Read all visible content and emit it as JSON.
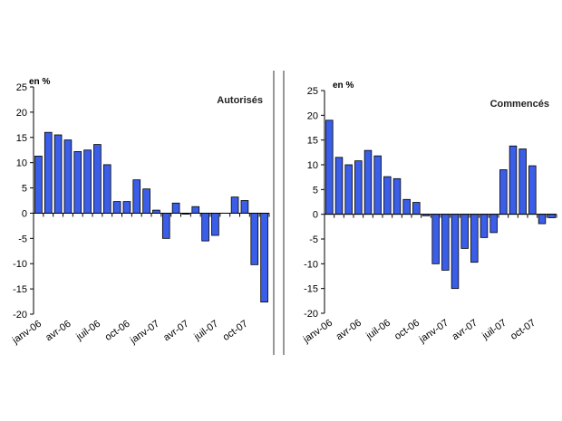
{
  "chart_data": [
    {
      "type": "bar",
      "title": "Autorisés",
      "ylabel": "en %",
      "ylim": [
        -20,
        25
      ],
      "yticks": [
        "25",
        "20",
        "15",
        "10",
        "5",
        "0",
        "-5",
        "-10",
        "-15",
        "-20"
      ],
      "xtick_labels": [
        "janv-06",
        "avr-06",
        "juil-06",
        "oct-06",
        "janv-07",
        "avr-07",
        "juil-07",
        "oct-07"
      ],
      "categories": [
        "janv-06",
        "févr-06",
        "mars-06",
        "avr-06",
        "mai-06",
        "juin-06",
        "juil-06",
        "août-06",
        "sept-06",
        "oct-06",
        "nov-06",
        "déc-06",
        "janv-07",
        "févr-07",
        "mars-07",
        "avr-07",
        "mai-07",
        "juin-07",
        "juil-07",
        "août-07",
        "sept-07",
        "oct-07",
        "nov-07",
        "déc-07"
      ],
      "values": [
        11.3,
        16.0,
        15.5,
        14.5,
        12.2,
        12.5,
        13.6,
        9.6,
        2.3,
        2.3,
        6.6,
        4.8,
        0.6,
        -5.0,
        2.0,
        -0.2,
        1.3,
        -5.5,
        -4.4,
        0,
        3.2,
        2.5,
        -10.2,
        -17.6
      ],
      "color": "#3b5ee8"
    },
    {
      "type": "bar",
      "title": "Commencés",
      "ylabel": "en %",
      "ylim": [
        -20,
        25
      ],
      "yticks": [
        "25",
        "20",
        "15",
        "10",
        "5",
        "0",
        "-5",
        "-10",
        "-15",
        "-20"
      ],
      "xtick_labels": [
        "janv-06",
        "avr-06",
        "juil-06",
        "oct-06",
        "janv-07",
        "avr-07",
        "juil-07",
        "oct-07"
      ],
      "categories": [
        "janv-06",
        "févr-06",
        "mars-06",
        "avr-06",
        "mai-06",
        "juin-06",
        "juil-06",
        "août-06",
        "sept-06",
        "oct-06",
        "nov-06",
        "déc-06",
        "janv-07",
        "févr-07",
        "mars-07",
        "avr-07",
        "mai-07",
        "juin-07",
        "juil-07",
        "août-07",
        "sept-07",
        "oct-07",
        "nov-07",
        "déc-07"
      ],
      "values": [
        19.0,
        11.5,
        10.0,
        10.8,
        12.9,
        11.8,
        7.6,
        7.2,
        3.0,
        2.4,
        -0.3,
        -10.0,
        -11.3,
        -15.0,
        -6.9,
        -9.7,
        -4.7,
        -3.7,
        9.0,
        13.8,
        13.2,
        9.8,
        -1.9,
        -0.7
      ],
      "color": "#3b5ee8"
    }
  ]
}
